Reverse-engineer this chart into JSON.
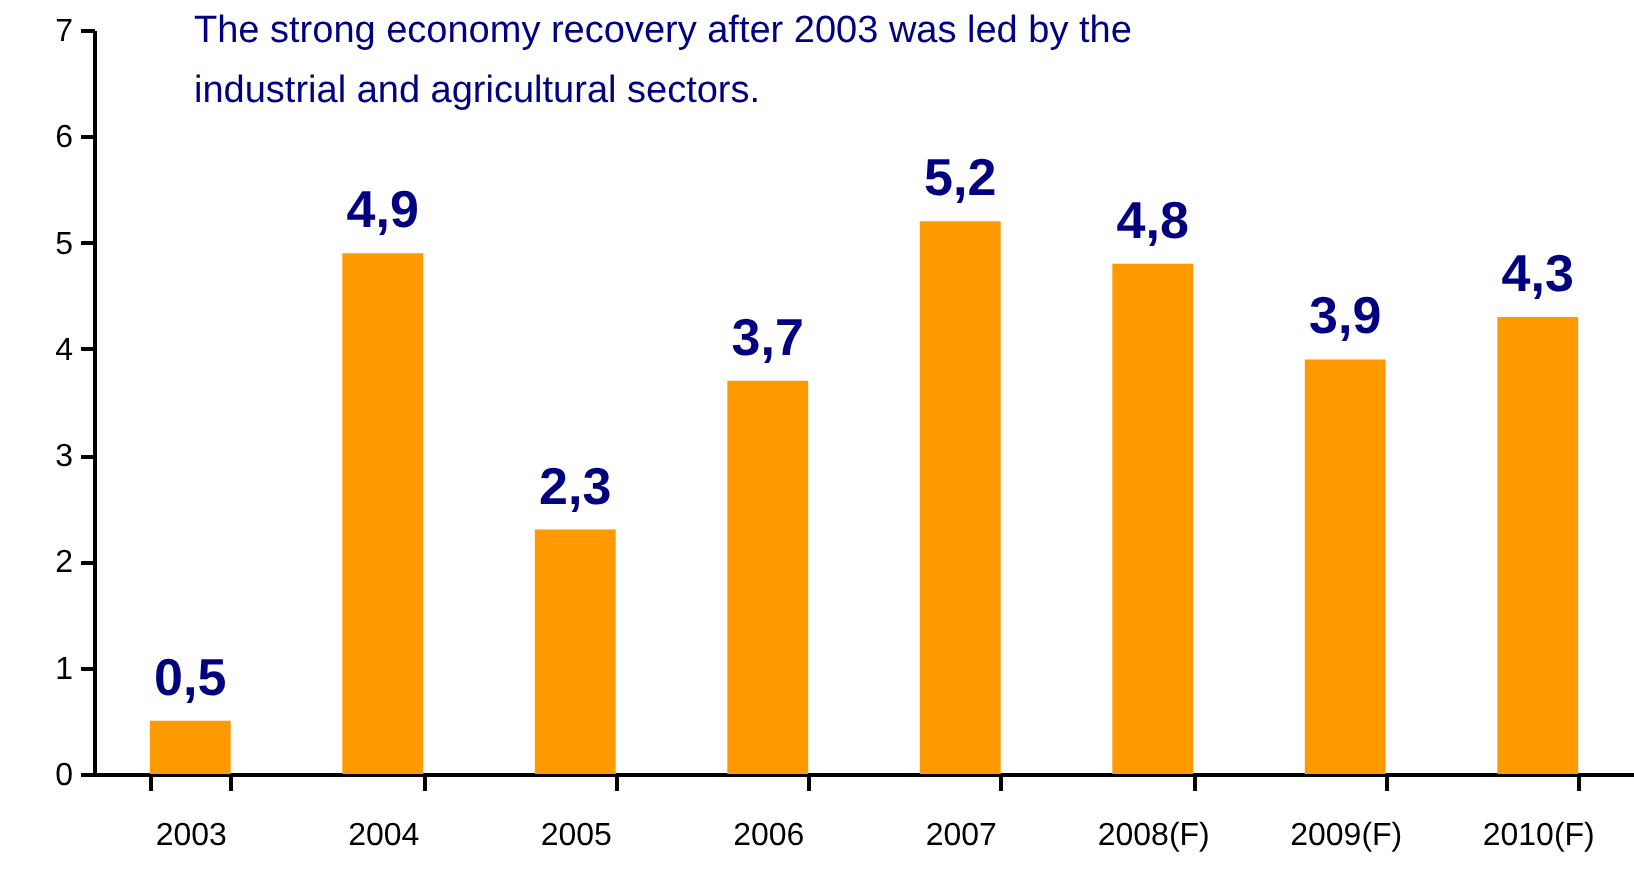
{
  "chart_data": {
    "type": "bar",
    "title": "The strong economy recovery after 2003 was led by the industrial and agricultural sectors.",
    "categories": [
      "2003",
      "2004",
      "2005",
      "2006",
      "2007",
      "2008(F)",
      "2009(F)",
      "2010(F)"
    ],
    "values": [
      0.5,
      4.9,
      2.3,
      3.7,
      5.2,
      4.8,
      3.9,
      4.3
    ],
    "value_labels": [
      "0,5",
      "4,9",
      "2,3",
      "3,7",
      "5,2",
      "4,8",
      "3,9",
      "4,3"
    ],
    "color": "#ff9900",
    "ylim": [
      0,
      7
    ],
    "yticks": [
      0,
      1,
      2,
      3,
      4,
      5,
      6,
      7
    ],
    "grid": false
  }
}
